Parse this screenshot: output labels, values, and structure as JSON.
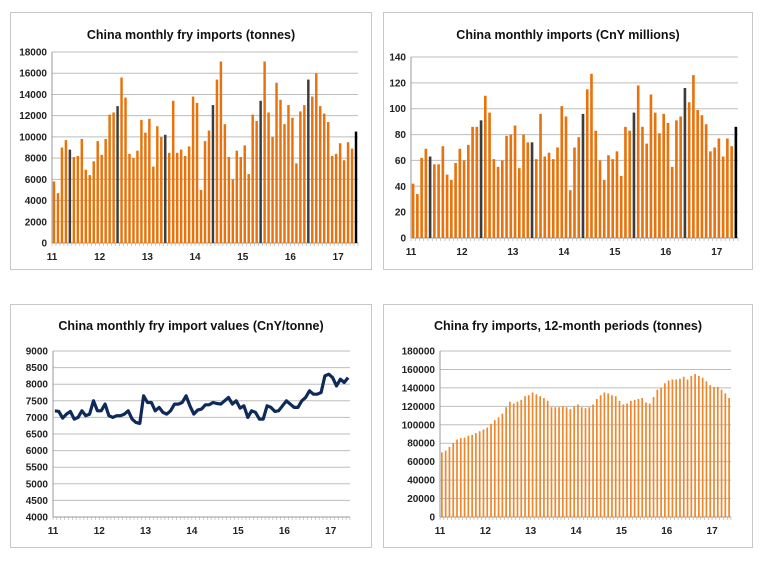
{
  "chart_data": [
    {
      "type": "bar",
      "title": "China monthly fry imports (tonnes)",
      "period": "Jan 2011 - May 2017, monthly",
      "x_tick_labels": [
        "11",
        "12",
        "13",
        "14",
        "15",
        "16",
        "17"
      ],
      "ylim": [
        0,
        18000
      ],
      "yticks": [
        0,
        2000,
        4000,
        6000,
        8000,
        10000,
        12000,
        14000,
        16000,
        18000
      ],
      "grid": true,
      "colors": {
        "bar": "#E8720C",
        "may_highlight": "#3C3C3C",
        "latest": "#000000"
      },
      "values": [
        5800,
        4700,
        9000,
        9700,
        8800,
        8100,
        8200,
        9800,
        6900,
        6400,
        7700,
        9600,
        8300,
        9800,
        12100,
        12300,
        12900,
        15600,
        13700,
        8400,
        8000,
        8700,
        11600,
        10400,
        11700,
        7200,
        11000,
        10000,
        10200,
        8500,
        13400,
        8500,
        8800,
        8200,
        9100,
        13800,
        13200,
        5000,
        9600,
        10600,
        13000,
        15400,
        17100,
        11200,
        8100,
        6000,
        8700,
        8100,
        9200,
        6500,
        12100,
        11500,
        13400,
        17100,
        12300,
        10000,
        15100,
        13500,
        11200,
        13000,
        11800,
        7500,
        12400,
        13000,
        15400,
        13800,
        16000,
        12900,
        12200,
        11400,
        8200,
        8400,
        9400,
        7800,
        9500,
        8900,
        10500
      ]
    },
    {
      "type": "bar",
      "title": "China monthly imports (CnY millions)",
      "period": "Jan 2011 - May 2017, monthly",
      "x_tick_labels": [
        "11",
        "12",
        "13",
        "14",
        "15",
        "16",
        "17"
      ],
      "ylim": [
        0,
        140
      ],
      "yticks": [
        0,
        20,
        40,
        60,
        80,
        100,
        120,
        140
      ],
      "grid": true,
      "colors": {
        "bar": "#E8720C",
        "may_highlight": "#3C3C3C",
        "latest": "#000000"
      },
      "values": [
        42,
        34,
        62,
        69,
        63,
        57,
        57,
        71,
        49,
        45,
        58,
        69,
        60,
        72,
        86,
        86,
        91,
        110,
        97,
        61,
        55,
        60,
        79,
        80,
        87,
        54,
        80,
        74,
        74,
        61,
        96,
        63,
        66,
        61,
        70,
        102,
        94,
        37,
        70,
        78,
        96,
        115,
        127,
        83,
        60,
        45,
        64,
        61,
        67,
        48,
        86,
        83,
        97,
        118,
        86,
        73,
        111,
        97,
        81,
        96,
        89,
        55,
        91,
        94,
        116,
        105,
        126,
        99,
        95,
        88,
        67,
        70,
        77,
        63,
        77,
        71,
        86
      ]
    },
    {
      "type": "line",
      "title": "China monthly fry import values (CnY/tonne)",
      "period": "Jan 2011 - May 2017, monthly",
      "x_tick_labels": [
        "11",
        "12",
        "13",
        "14",
        "15",
        "16",
        "17"
      ],
      "ylim": [
        4000,
        9000
      ],
      "yticks": [
        4000,
        4500,
        5000,
        5500,
        6000,
        6500,
        7000,
        7500,
        8000,
        8500,
        9000
      ],
      "grid": true,
      "colors": {
        "line": "#0E2A5A"
      },
      "values": [
        7200,
        7180,
        6980,
        7100,
        7180,
        6950,
        7000,
        7200,
        7050,
        7100,
        7500,
        7200,
        7200,
        7400,
        7050,
        7000,
        7050,
        7050,
        7100,
        7200,
        6950,
        6850,
        6820,
        7650,
        7450,
        7450,
        7200,
        7300,
        7150,
        7100,
        7200,
        7400,
        7400,
        7450,
        7650,
        7350,
        7100,
        7220,
        7250,
        7380,
        7380,
        7450,
        7420,
        7400,
        7500,
        7600,
        7400,
        7500,
        7280,
        7350,
        7000,
        7200,
        7150,
        6950,
        6950,
        7350,
        7300,
        7180,
        7200,
        7350,
        7500,
        7400,
        7300,
        7300,
        7500,
        7600,
        7800,
        7700,
        7700,
        7750,
        8250,
        8300,
        8200,
        7950,
        8150,
        8050,
        8200
      ]
    },
    {
      "type": "bar",
      "title": "China fry imports, 12-month periods (tonnes)",
      "period": "Jan 2011 - May 2017, rolling 12-month totals",
      "x_tick_labels": [
        "11",
        "12",
        "13",
        "14",
        "15",
        "16",
        "17"
      ],
      "ylim": [
        0,
        180000
      ],
      "yticks": [
        0,
        20000,
        40000,
        60000,
        80000,
        100000,
        120000,
        140000,
        160000,
        180000
      ],
      "grid": true,
      "colors": {
        "bar": "#F0872A"
      },
      "values": [
        70000,
        72000,
        76000,
        80000,
        84000,
        85500,
        86000,
        88000,
        89000,
        91000,
        93000,
        95000,
        97000,
        101000,
        105000,
        108000,
        112000,
        119000,
        125000,
        123000,
        125000,
        127000,
        131000,
        132000,
        135000,
        133000,
        131000,
        129000,
        126000,
        119000,
        119000,
        119000,
        120000,
        119000,
        117000,
        120000,
        122000,
        119000,
        118000,
        119000,
        122000,
        128000,
        132000,
        135000,
        134000,
        132000,
        131000,
        126000,
        122000,
        123000,
        126000,
        127000,
        128000,
        129000,
        124000,
        123000,
        130000,
        138000,
        140000,
        145000,
        148000,
        149000,
        149000,
        150000,
        152000,
        149000,
        153000,
        155000,
        153000,
        151000,
        147000,
        143000,
        141000,
        141000,
        138000,
        134000,
        129000
      ]
    }
  ]
}
